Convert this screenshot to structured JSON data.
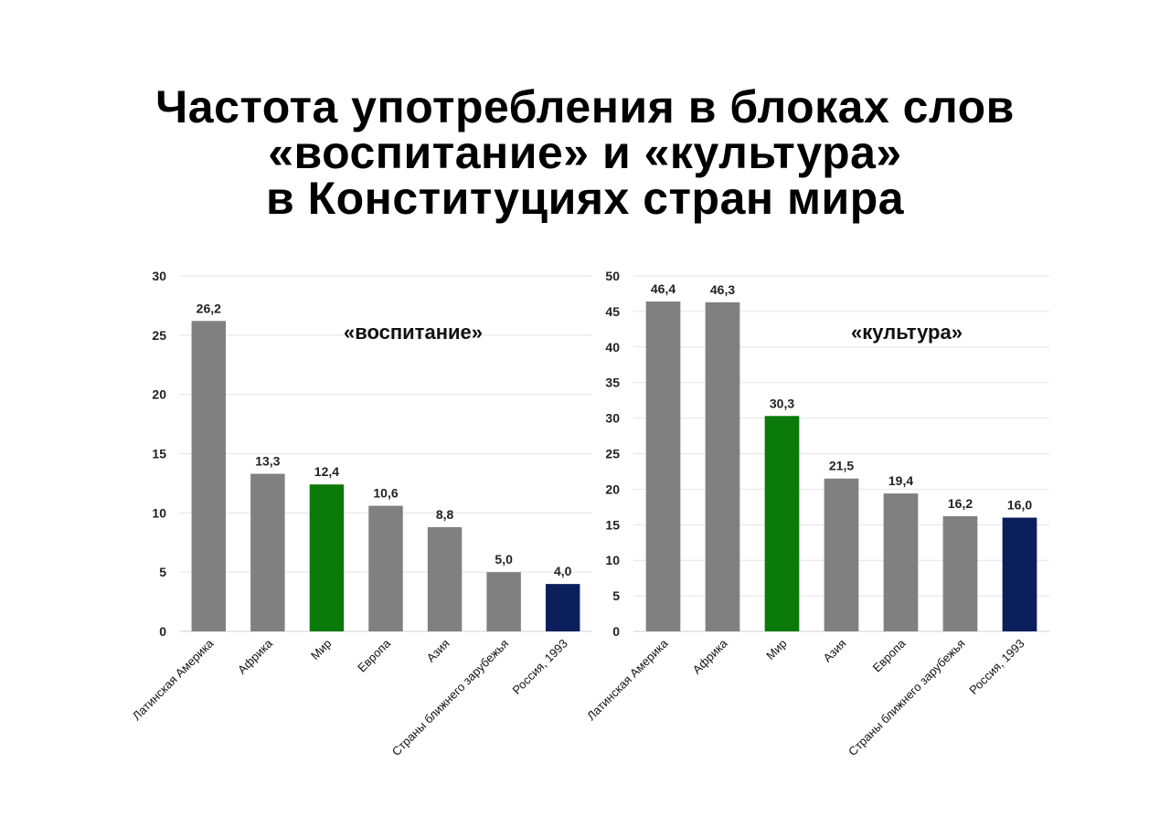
{
  "title": {
    "line1": "Частота употребления в блоках слов",
    "line2": "«воспитание» и «культура»",
    "line3": "в Конституциях стран мира"
  },
  "colors": {
    "bar_default": "#808080",
    "world": "#0a7a0a",
    "russia": "#0b1f5c",
    "grid": "#e4e4e4"
  },
  "chart_data": [
    {
      "type": "bar",
      "title": "",
      "annotation": "«воспитание»",
      "categories": [
        "Латинская Америка",
        "Африка",
        "Мир",
        "Европа",
        "Азия",
        "Страны ближнего зарубежья",
        "Россия, 1993"
      ],
      "values": [
        26.2,
        13.3,
        12.4,
        10.6,
        8.8,
        5.0,
        4.0
      ],
      "value_labels": [
        "26,2",
        "13,3",
        "12,4",
        "10,6",
        "8,8",
        "5,0",
        "4,0"
      ],
      "bar_colors": [
        "#808080",
        "#808080",
        "#0a7a0a",
        "#808080",
        "#808080",
        "#808080",
        "#0b1f5c"
      ],
      "yticks": [
        0,
        5,
        10,
        15,
        20,
        25,
        30
      ],
      "ylim": [
        0,
        30
      ],
      "xlabel": "",
      "ylabel": "",
      "grid": true
    },
    {
      "type": "bar",
      "title": "",
      "annotation": "«культура»",
      "categories": [
        "Латинская Америка",
        "Африка",
        "Мир",
        "Азия",
        "Европа",
        "Страны ближнего зарубежья",
        "Россия, 1993"
      ],
      "values": [
        46.4,
        46.3,
        30.3,
        21.5,
        19.4,
        16.2,
        16.0
      ],
      "value_labels": [
        "46,4",
        "46,3",
        "30,3",
        "21,5",
        "19,4",
        "16,2",
        "16,0"
      ],
      "bar_colors": [
        "#808080",
        "#808080",
        "#0a7a0a",
        "#808080",
        "#808080",
        "#808080",
        "#0b1f5c"
      ],
      "yticks": [
        0,
        5,
        10,
        15,
        20,
        25,
        30,
        35,
        40,
        45,
        50
      ],
      "ylim": [
        0,
        50
      ],
      "xlabel": "",
      "ylabel": "",
      "grid": true
    }
  ]
}
